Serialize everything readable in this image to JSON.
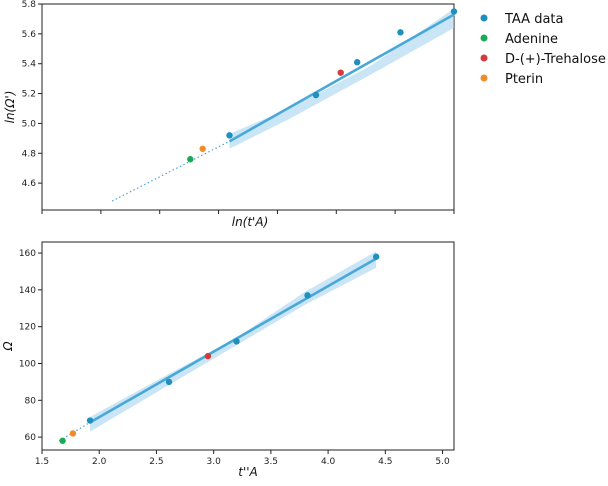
{
  "legend": [
    {
      "label": "TAA data",
      "color": "#1f8fc0"
    },
    {
      "label": "Adenine",
      "color": "#1aaa55"
    },
    {
      "label": "D-(+)-Trehalose",
      "color": "#d63a3a"
    },
    {
      "label": "Pterin",
      "color": "#f08a2a"
    }
  ],
  "chart_data": [
    {
      "type": "scatter",
      "title": "",
      "xlabel": "ln(t'A)",
      "ylabel": "ln(Ω')",
      "xlim": [
        0,
        1
      ],
      "ylim": [
        4.42,
        5.8
      ],
      "x_ticks_labeled": false,
      "y_ticks": [
        4.6,
        4.8,
        5.0,
        5.2,
        5.4,
        5.6,
        5.8
      ],
      "y_tick_labels": [
        "4.6",
        "4.8",
        "5.0",
        "5.2",
        "5.4",
        "5.6",
        "5.8"
      ],
      "grid": false,
      "legend_placement": "outside-right",
      "series": [
        {
          "name": "TAA data",
          "color": "#1f8fc0",
          "x": [
            0.455,
            0.665,
            0.765,
            0.87,
            1.0
          ],
          "y": [
            4.92,
            5.19,
            5.41,
            5.61,
            5.75
          ]
        },
        {
          "name": "Adenine",
          "color": "#1aaa55",
          "x": [
            0.36
          ],
          "y": [
            4.76
          ]
        },
        {
          "name": "D-(+)-Trehalose",
          "color": "#d63a3a",
          "x": [
            0.725
          ],
          "y": [
            5.34
          ]
        },
        {
          "name": "Pterin",
          "color": "#f08a2a",
          "x": [
            0.39
          ],
          "y": [
            4.83
          ]
        }
      ],
      "fit_line": {
        "x": [
          0.455,
          1.0
        ],
        "y": [
          4.88,
          5.73
        ]
      },
      "extrapolation_line": {
        "x": [
          0.17,
          0.455
        ],
        "y": [
          4.48,
          4.88
        ]
      },
      "confidence_band": {
        "x": [
          0.455,
          0.6,
          0.8,
          1.0
        ],
        "lower": [
          4.83,
          5.03,
          5.33,
          5.64
        ],
        "upper": [
          4.93,
          5.1,
          5.39,
          5.77
        ]
      }
    },
    {
      "type": "scatter",
      "title": "",
      "xlabel": "t''A",
      "ylabel": "Ω",
      "xlim": [
        1.5,
        5.1
      ],
      "ylim": [
        53,
        166
      ],
      "x_ticks": [
        1.5,
        2.0,
        2.5,
        3.0,
        3.5,
        4.0,
        4.5,
        5.0
      ],
      "x_tick_labels": [
        "1.5",
        "2.0",
        "2.5",
        "3.0",
        "3.5",
        "4.0",
        "4.5",
        "5.0"
      ],
      "y_ticks": [
        60,
        80,
        100,
        120,
        140,
        160
      ],
      "y_tick_labels": [
        "60",
        "80",
        "100",
        "120",
        "140",
        "160"
      ],
      "grid": false,
      "series": [
        {
          "name": "TAA data",
          "color": "#1f8fc0",
          "x": [
            1.92,
            2.61,
            3.2,
            3.82,
            4.42
          ],
          "y": [
            69,
            90,
            112,
            137,
            158
          ]
        },
        {
          "name": "Adenine",
          "color": "#1aaa55",
          "x": [
            1.68
          ],
          "y": [
            58
          ]
        },
        {
          "name": "D-(+)-Trehalose",
          "color": "#d63a3a",
          "x": [
            2.95
          ],
          "y": [
            104
          ]
        },
        {
          "name": "Pterin",
          "color": "#f08a2a",
          "x": [
            1.77
          ],
          "y": [
            62
          ]
        }
      ],
      "fit_line": {
        "x": [
          1.92,
          4.42
        ],
        "y": [
          68,
          157
        ]
      },
      "extrapolation_line": {
        "x": [
          1.65,
          1.92
        ],
        "y": [
          58,
          68
        ]
      },
      "confidence_band": {
        "x": [
          1.92,
          2.6,
          3.2,
          3.8,
          4.42
        ],
        "lower": [
          63,
          88,
          110,
          132,
          152
        ],
        "upper": [
          71,
          94,
          114,
          139,
          161
        ]
      }
    }
  ]
}
